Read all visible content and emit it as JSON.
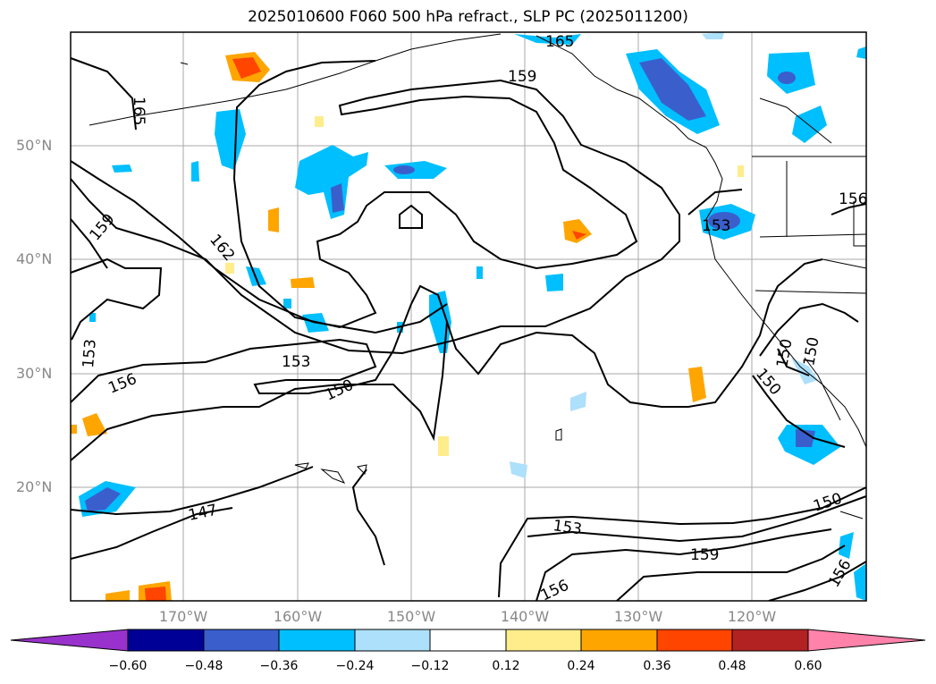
{
  "title": "2025010600 F060 500 hPa refract., SLP PC (2025011200)",
  "lat_labels": [
    "50°N",
    "40°N",
    "30°N",
    "20°N"
  ],
  "lon_labels": [
    "170°W",
    "160°W",
    "150°W",
    "140°W",
    "130°W",
    "120°W"
  ],
  "contour_labels": [
    "165",
    "165",
    "159",
    "162",
    "159",
    "153",
    "156",
    "153",
    "150",
    "147",
    "153",
    "159",
    "156",
    "150",
    "156",
    "150",
    "150",
    "150",
    "153",
    "156"
  ],
  "colorbar": {
    "ticks": [
      "−0.60",
      "−0.48",
      "−0.36",
      "−0.24",
      "−0.12",
      "0.12",
      "0.24",
      "0.36",
      "0.48",
      "0.60"
    ],
    "colors": [
      "#9932CC",
      "#000096",
      "#3A5FCD",
      "#00BFFF",
      "#ADE0FA",
      "#FFFFFF",
      "#FFEC8B",
      "#FFA500",
      "#FF4500",
      "#B22222",
      "#FF82AB"
    ]
  }
}
